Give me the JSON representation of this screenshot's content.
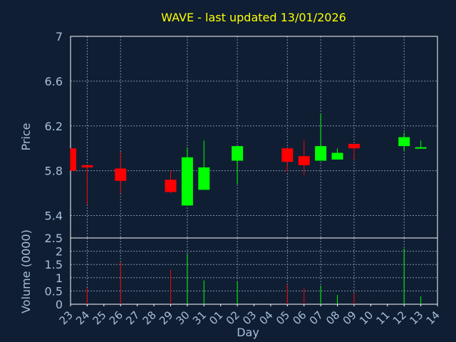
{
  "chart_data": {
    "type": "candlestick",
    "title": "WAVE - last updated 13/01/2026",
    "xlabel": "Day",
    "ylabel_price": "Price",
    "ylabel_volume": "Volume (0000)",
    "colors": {
      "up": "#00ff00",
      "down": "#ff0000",
      "background": "#0f1e33",
      "text": "#a8bfd9",
      "title": "#ffff00",
      "grid": "#8090a8",
      "frame": "#ffffff"
    },
    "price_ylim": [
      5.2,
      7.0
    ],
    "price_ticks": [
      "5.4",
      "5.8",
      "6.2",
      "6.6",
      "7"
    ],
    "price_tick_values": [
      5.4,
      5.8,
      6.2,
      6.6,
      7.0
    ],
    "volume_ylim": [
      0,
      2.5
    ],
    "volume_ticks": [
      "0",
      "0.5",
      "1",
      "1.5",
      "2",
      "2.5"
    ],
    "volume_tick_values": [
      0,
      0.5,
      1,
      1.5,
      2,
      2.5
    ],
    "x_tick_labels": [
      "23",
      "24",
      "25",
      "26",
      "27",
      "28",
      "29",
      "30",
      "31",
      "01",
      "02",
      "03",
      "04",
      "05",
      "06",
      "07",
      "08",
      "09",
      "10",
      "11",
      "12",
      "13",
      "14"
    ],
    "grid_lines_at": [
      "24",
      "26",
      "30",
      "02",
      "05",
      "07",
      "09",
      "12"
    ],
    "candles": [
      {
        "day": "23",
        "open": 6.0,
        "high": 6.0,
        "low": 5.8,
        "close": 5.8,
        "volume": 0
      },
      {
        "day": "24",
        "open": 5.85,
        "high": 5.85,
        "low": 5.5,
        "close": 5.83,
        "volume": 0.6
      },
      {
        "day": "26",
        "open": 5.82,
        "high": 5.97,
        "low": 5.6,
        "close": 5.71,
        "volume": 1.6
      },
      {
        "day": "29",
        "open": 5.72,
        "high": 5.8,
        "low": 5.6,
        "close": 5.61,
        "volume": 1.3
      },
      {
        "day": "30",
        "open": 5.49,
        "high": 6.01,
        "low": 5.49,
        "close": 5.92,
        "volume": 1.9
      },
      {
        "day": "31",
        "open": 5.63,
        "high": 6.07,
        "low": 5.63,
        "close": 5.83,
        "volume": 0.9
      },
      {
        "day": "02",
        "open": 5.89,
        "high": 6.02,
        "low": 5.68,
        "close": 6.02,
        "volume": 0.85
      },
      {
        "day": "05",
        "open": 6.0,
        "high": 6.0,
        "low": 5.79,
        "close": 5.88,
        "volume": 0.75
      },
      {
        "day": "06",
        "open": 5.93,
        "high": 6.07,
        "low": 5.76,
        "close": 5.85,
        "volume": 0.6
      },
      {
        "day": "07",
        "open": 5.89,
        "high": 6.31,
        "low": 5.89,
        "close": 6.02,
        "volume": 0.7
      },
      {
        "day": "08",
        "open": 5.9,
        "high": 6.0,
        "low": 5.9,
        "close": 5.96,
        "volume": 0.35
      },
      {
        "day": "09",
        "open": 6.04,
        "high": 6.04,
        "low": 5.9,
        "close": 6.0,
        "volume": 0.4
      },
      {
        "day": "12",
        "open": 6.02,
        "high": 6.14,
        "low": 5.98,
        "close": 6.1,
        "volume": 2.1
      },
      {
        "day": "13",
        "open": 6.0,
        "high": 6.07,
        "low": 6.0,
        "close": 6.01,
        "volume": 0.3
      }
    ]
  }
}
